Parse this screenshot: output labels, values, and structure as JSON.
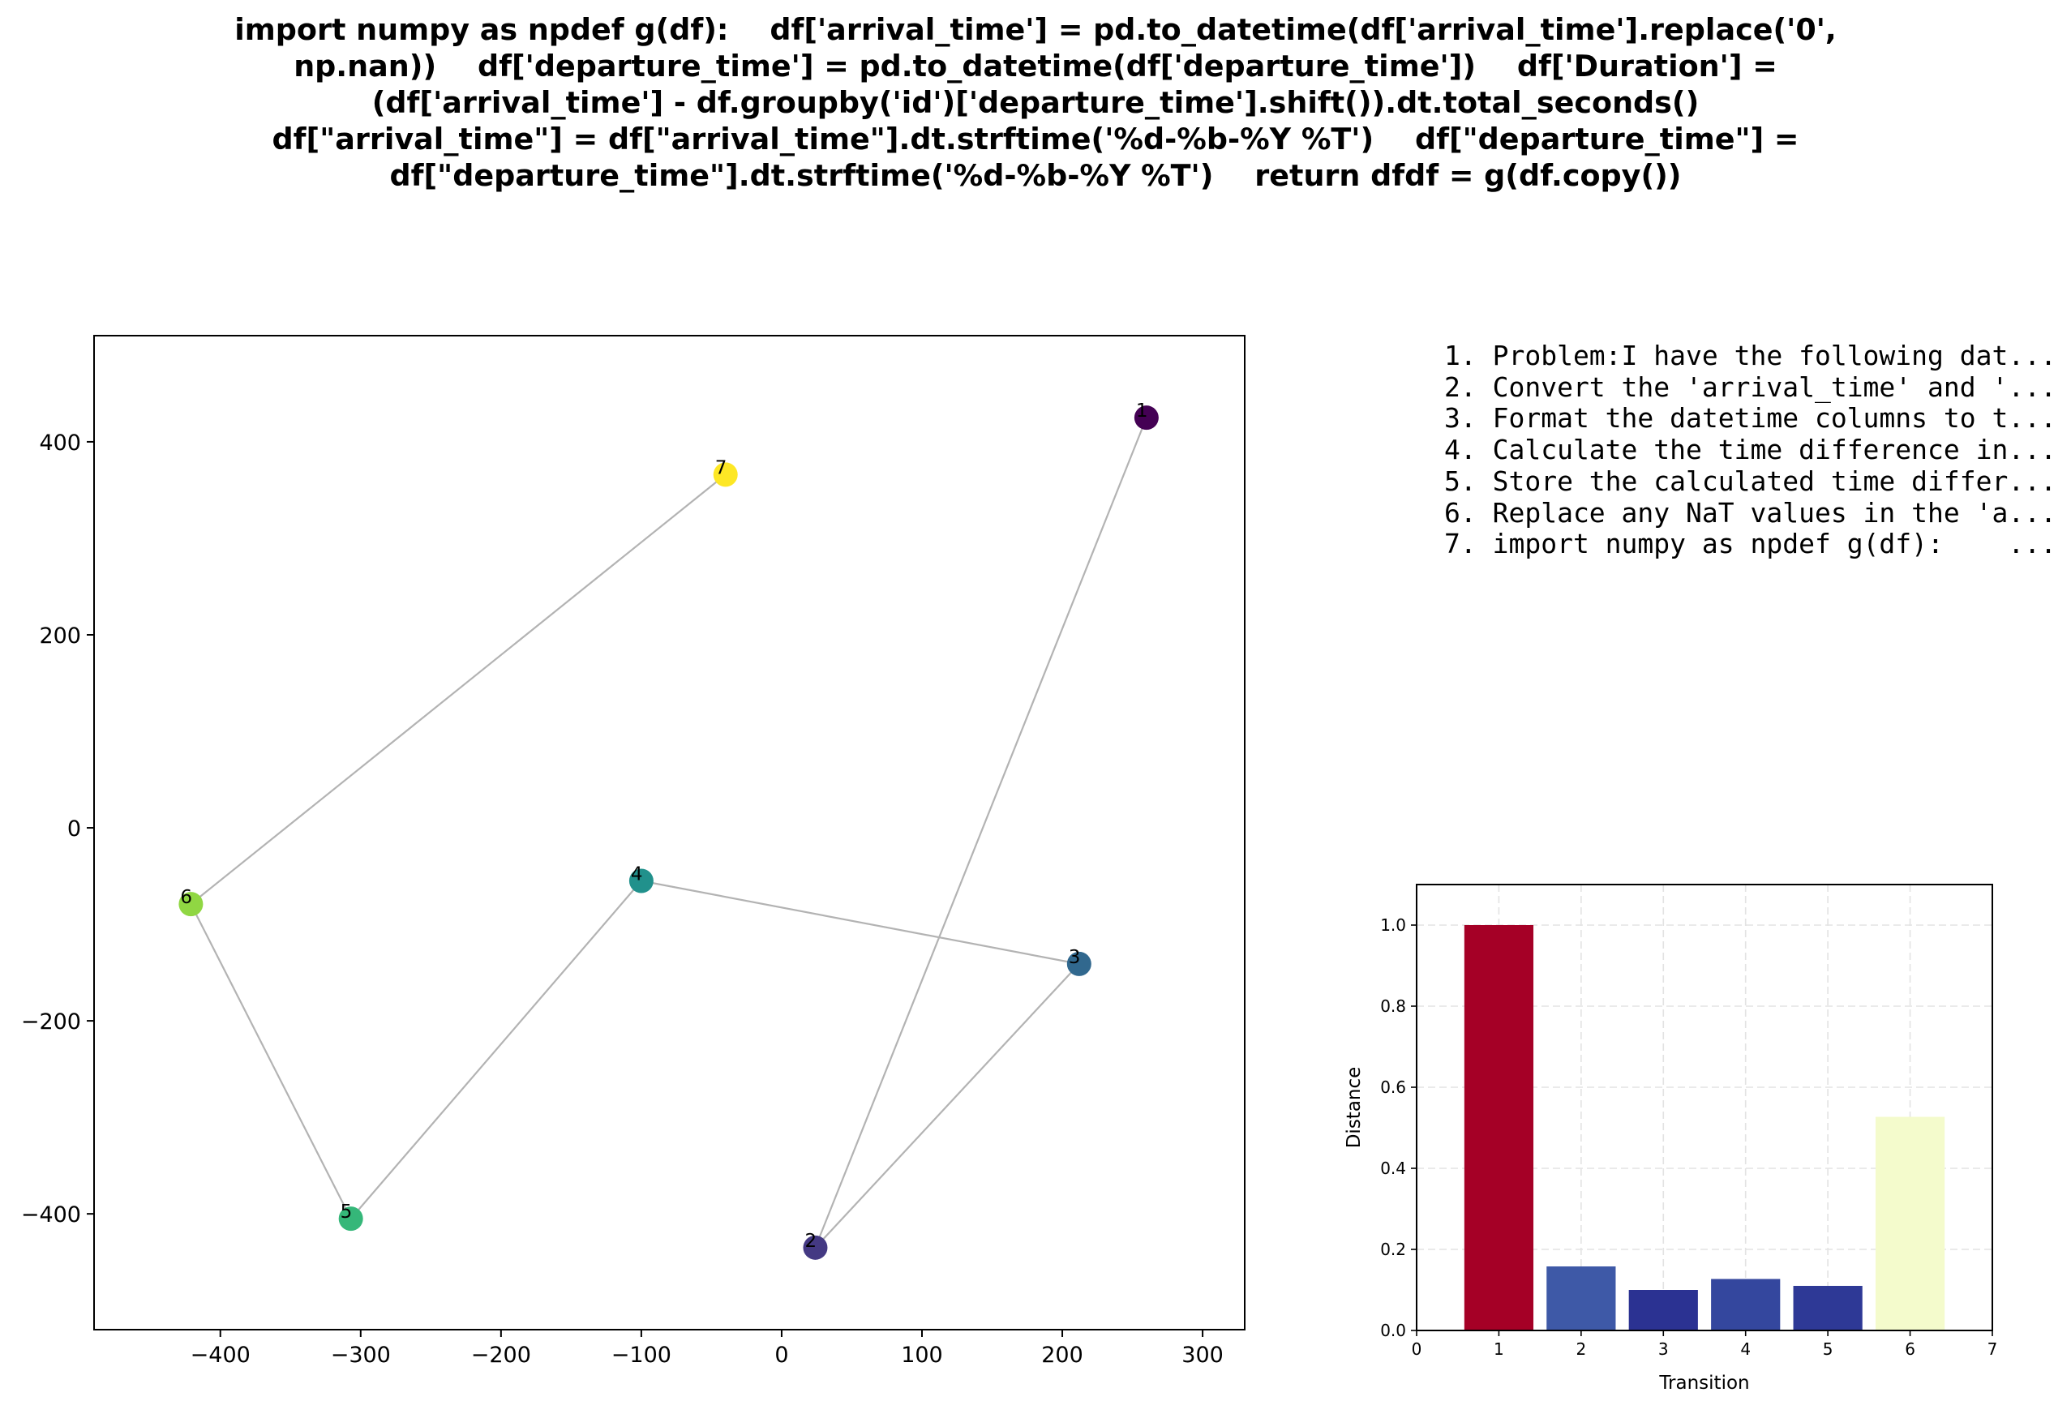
{
  "title_lines": [
    "import numpy as npdef g(df):    df['arrival_time'] = pd.to_datetime(df['arrival_time'].replace('0',",
    "np.nan))    df['departure_time'] = pd.to_datetime(df['departure_time'])    df['Duration'] =",
    "(df['arrival_time'] - df.groupby('id')['departure_time'].shift()).dt.total_seconds()",
    "df[\"arrival_time\"] = df[\"arrival_time\"].dt.strftime('%d-%b-%Y %T')    df[\"departure_time\"] =",
    "df[\"departure_time\"].dt.strftime('%d-%b-%Y %T')    return dfdf = g(df.copy())"
  ],
  "steps": [
    "1. Problem:I have the following dat...",
    "2. Convert the 'arrival_time' and '...",
    "3. Format the datetime columns to t...",
    "4. Calculate the time difference in...",
    "5. Store the calculated time differ...",
    "6. Replace any NaT values in the 'a...",
    "7. import numpy as npdef g(df):    ..."
  ],
  "chart_data": [
    {
      "type": "scatter",
      "title": "",
      "xlabel": "",
      "ylabel": "",
      "xlim": [
        -490,
        330
      ],
      "ylim": [
        -520,
        510
      ],
      "xticks": [
        -400,
        -300,
        -200,
        -100,
        0,
        100,
        200,
        300
      ],
      "yticks": [
        -400,
        -200,
        0,
        200,
        400
      ],
      "xtick_labels": [
        "−400",
        "−300",
        "−200",
        "−100",
        "0",
        "100",
        "200",
        "300"
      ],
      "ytick_labels": [
        "−400",
        "−200",
        "0",
        "200",
        "400"
      ],
      "grid": false,
      "points": [
        {
          "label": "1",
          "x": 260,
          "y": 425,
          "color": "#440154"
        },
        {
          "label": "2",
          "x": 24,
          "y": 435,
          "color": "#443983",
          "y_neg": true
        },
        {
          "label": "3",
          "x": 212,
          "y": -141,
          "color": "#31688e"
        },
        {
          "label": "4",
          "x": -100,
          "y": -55,
          "color": "#21918c"
        },
        {
          "label": "5",
          "x": -307,
          "y": -405,
          "color": "#35b779"
        },
        {
          "label": "6",
          "x": -421,
          "y": -79,
          "color": "#90d743"
        },
        {
          "label": "7",
          "x": -40,
          "y": 366,
          "color": "#fde725"
        }
      ],
      "path_order": [
        "1",
        "2",
        "3",
        "4",
        "5",
        "6",
        "7"
      ],
      "line_color": "#b3b3b3"
    },
    {
      "type": "bar",
      "title": "",
      "xlabel": "Transition",
      "ylabel": "Distance",
      "xlim": [
        0,
        7
      ],
      "ylim": [
        0,
        1.1
      ],
      "xticks": [
        0,
        1,
        2,
        3,
        4,
        5,
        6,
        7
      ],
      "xtick_labels": [
        "0",
        "1",
        "2",
        "3",
        "4",
        "5",
        "6",
        "7"
      ],
      "yticks": [
        0.0,
        0.2,
        0.4,
        0.6,
        0.8,
        1.0
      ],
      "ytick_labels": [
        "0.0",
        "0.2",
        "0.4",
        "0.6",
        "0.8",
        "1.0"
      ],
      "grid": true,
      "categories": [
        1,
        2,
        3,
        4,
        5,
        6
      ],
      "values": [
        1.0,
        0.158,
        0.1,
        0.127,
        0.11,
        0.527
      ],
      "colors": [
        "#a50026",
        "#3e59a7",
        "#2b3292",
        "#34479e",
        "#2e3996",
        "#f4fbcc"
      ]
    }
  ]
}
